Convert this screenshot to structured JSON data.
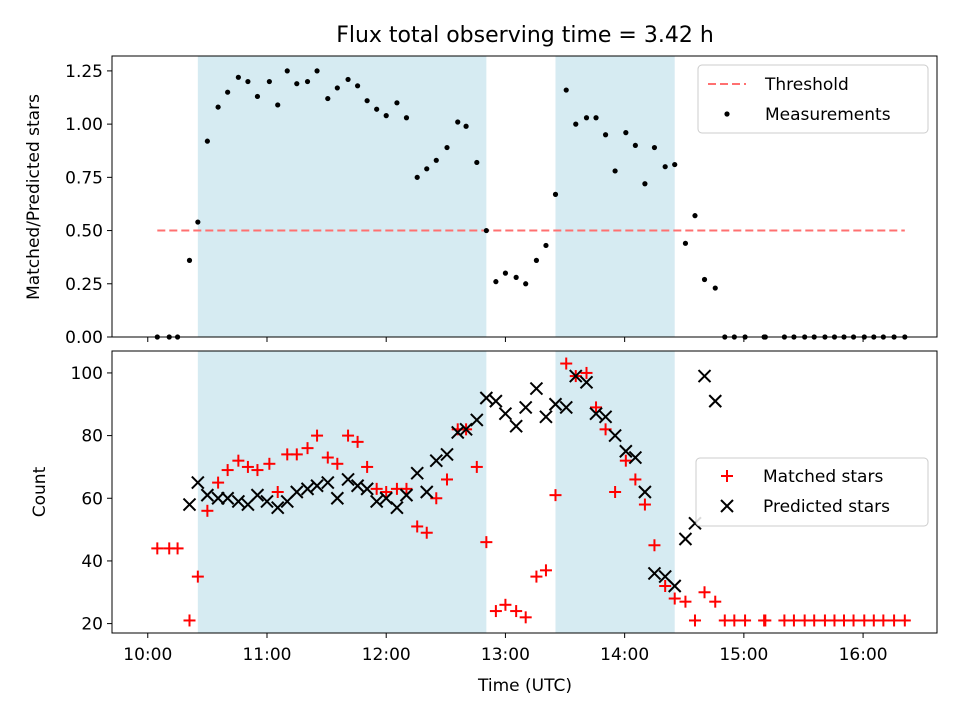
{
  "chart_data": {
    "title": "Flux total observing time = 3.42 h",
    "xlabel": "Time (UTC)",
    "x_ticks": [
      "10:00",
      "11:00",
      "12:00",
      "13:00",
      "14:00",
      "15:00",
      "16:00"
    ],
    "x_tick_hours": [
      10,
      11,
      12,
      13,
      14,
      15,
      16
    ],
    "xlim_hours": [
      9.7,
      16.62
    ],
    "shaded_intervals_hours": [
      [
        10.42,
        12.84
      ],
      [
        13.42,
        14.42
      ]
    ],
    "shade_color": "#add8e6",
    "panels": [
      {
        "type": "scatter",
        "ylabel": "Matched/Predicted stars",
        "ylim": [
          0,
          1.32
        ],
        "yticks": [
          0.0,
          0.25,
          0.5,
          0.75,
          1.0,
          1.25
        ],
        "ytick_labels": [
          "0.00",
          "0.25",
          "0.50",
          "0.75",
          "1.00",
          "1.25"
        ],
        "legend": "top-right",
        "threshold": {
          "name": "Threshold",
          "y": 0.5,
          "x_range_hours": [
            10.08,
            16.35
          ],
          "color": "#ff7070"
        },
        "series": [
          {
            "name": "Measurements",
            "color": "#000000",
            "x_hours": [
              10.08,
              10.18,
              10.25,
              10.35,
              10.42,
              10.5,
              10.59,
              10.67,
              10.76,
              10.84,
              10.92,
              11.02,
              11.09,
              11.17,
              11.25,
              11.34,
              11.42,
              11.51,
              11.59,
              11.68,
              11.76,
              11.84,
              11.92,
              12.0,
              12.09,
              12.17,
              12.26,
              12.34,
              12.42,
              12.51,
              12.6,
              12.67,
              12.76,
              12.84,
              12.92,
              13.0,
              13.09,
              13.17,
              13.26,
              13.34,
              13.42,
              13.51,
              13.59,
              13.68,
              13.76,
              13.84,
              13.92,
              14.01,
              14.09,
              14.17,
              14.25,
              14.34,
              14.42,
              14.51,
              14.59,
              14.67,
              14.76,
              14.84,
              14.92,
              15.01,
              15.17,
              15.18,
              15.34,
              15.42,
              15.51,
              15.59,
              15.68,
              15.76,
              15.84,
              15.92,
              16.01,
              16.09,
              16.17,
              16.26,
              16.35
            ],
            "y": [
              0.0,
              0.0,
              0.0,
              0.36,
              0.54,
              0.92,
              1.08,
              1.15,
              1.22,
              1.2,
              1.13,
              1.2,
              1.09,
              1.25,
              1.19,
              1.2,
              1.25,
              1.12,
              1.17,
              1.21,
              1.18,
              1.11,
              1.07,
              1.04,
              1.1,
              1.03,
              0.75,
              0.79,
              0.83,
              0.89,
              1.01,
              0.99,
              0.82,
              0.5,
              0.26,
              0.3,
              0.28,
              0.25,
              0.36,
              0.43,
              0.67,
              1.16,
              1.0,
              1.03,
              1.03,
              0.95,
              0.78,
              0.96,
              0.9,
              0.72,
              0.89,
              0.8,
              0.81,
              0.44,
              0.57,
              0.27,
              0.23,
              0.0,
              0.0,
              0.0,
              0.0,
              0.0,
              0.0,
              0.0,
              0.0,
              0.0,
              0.0,
              0.0,
              0.0,
              0.0,
              0.0,
              0.0,
              0.0,
              0.0,
              0.0
            ]
          }
        ]
      },
      {
        "type": "scatter",
        "ylabel": "Count",
        "ylim": [
          17,
          107
        ],
        "yticks": [
          20,
          40,
          60,
          80,
          100
        ],
        "ytick_labels": [
          "20",
          "40",
          "60",
          "80",
          "100"
        ],
        "legend": "center-right",
        "series": [
          {
            "name": "Matched stars",
            "marker": "plus",
            "color": "#ff0000",
            "x_hours": [
              10.08,
              10.18,
              10.25,
              10.35,
              10.42,
              10.5,
              10.59,
              10.67,
              10.76,
              10.84,
              10.92,
              11.02,
              11.09,
              11.17,
              11.25,
              11.34,
              11.42,
              11.51,
              11.59,
              11.68,
              11.76,
              11.84,
              11.92,
              12.0,
              12.09,
              12.17,
              12.26,
              12.34,
              12.42,
              12.51,
              12.6,
              12.67,
              12.76,
              12.84,
              12.92,
              13.0,
              13.09,
              13.17,
              13.26,
              13.34,
              13.42,
              13.51,
              13.59,
              13.68,
              13.76,
              13.84,
              13.92,
              14.01,
              14.09,
              14.17,
              14.25,
              14.34,
              14.42,
              14.51,
              14.59,
              14.67,
              14.76,
              14.84,
              14.92,
              15.01,
              15.17,
              15.18,
              15.34,
              15.42,
              15.51,
              15.59,
              15.68,
              15.76,
              15.84,
              15.92,
              16.01,
              16.09,
              16.17,
              16.26,
              16.35
            ],
            "y": [
              44,
              44,
              44,
              21,
              35,
              56,
              65,
              69,
              72,
              70,
              69,
              71,
              62,
              74,
              74,
              76,
              80,
              73,
              71,
              80,
              78,
              70,
              63,
              62,
              63,
              63,
              51,
              49,
              60,
              66,
              82,
              82,
              70,
              46,
              24,
              26,
              24,
              22,
              35,
              37,
              61,
              103,
              99,
              100,
              89,
              82,
              62,
              72,
              66,
              58,
              45,
              32,
              28,
              27,
              21,
              30,
              27,
              21,
              21,
              21,
              21,
              21,
              21,
              21,
              21,
              21,
              21,
              21,
              21,
              21,
              21,
              21,
              21,
              21,
              21
            ]
          },
          {
            "name": "Predicted stars",
            "marker": "x",
            "color": "#000000",
            "x_hours": [
              10.35,
              10.42,
              10.5,
              10.59,
              10.67,
              10.76,
              10.84,
              10.92,
              11.0,
              11.09,
              11.17,
              11.25,
              11.34,
              11.42,
              11.51,
              11.59,
              11.68,
              11.76,
              11.84,
              11.92,
              12.0,
              12.09,
              12.17,
              12.26,
              12.34,
              12.42,
              12.51,
              12.6,
              12.67,
              12.76,
              12.84,
              12.92,
              13.0,
              13.09,
              13.17,
              13.26,
              13.34,
              13.42,
              13.51,
              13.59,
              13.68,
              13.76,
              13.84,
              13.92,
              14.01,
              14.09,
              14.17,
              14.25,
              14.34,
              14.42,
              14.51,
              14.59,
              14.67,
              14.76
            ],
            "y": [
              58,
              65,
              61,
              60,
              60,
              59,
              58,
              61,
              59,
              57,
              59,
              62,
              63,
              64,
              65,
              60,
              66,
              64,
              63,
              59,
              60,
              57,
              61,
              68,
              62,
              72,
              74,
              81,
              82,
              85,
              92,
              91,
              87,
              83,
              89,
              95,
              86,
              90,
              89,
              99,
              97,
              87,
              86,
              80,
              75,
              73,
              62,
              36,
              35,
              32,
              47,
              52,
              99,
              91
            ]
          }
        ]
      }
    ]
  }
}
